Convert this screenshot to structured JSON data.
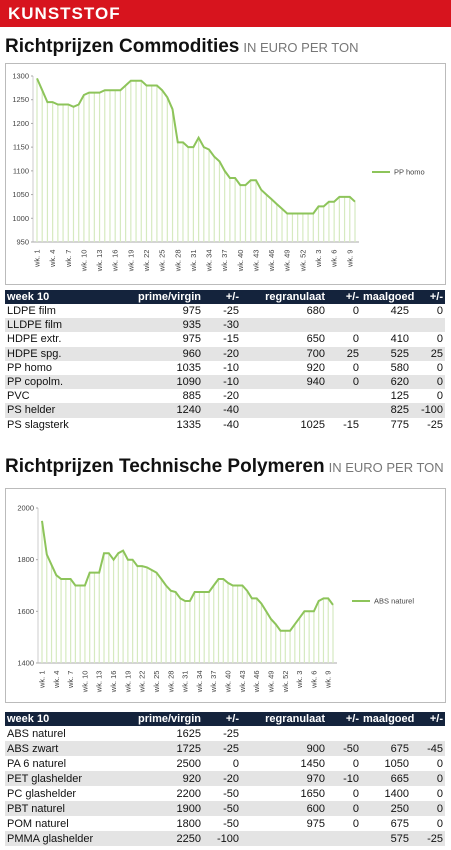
{
  "header": {
    "title": "KUNSTSTOF"
  },
  "chart_data": [
    {
      "type": "line",
      "title": "Richtprijzen Commodities",
      "subtitle": "IN EURO PER TON",
      "categories": [
        "wk. 1",
        null,
        null,
        "wk. 4",
        null,
        null,
        "wk. 7",
        null,
        null,
        "wk. 10",
        null,
        null,
        "wk. 13",
        null,
        null,
        "wk. 16",
        null,
        null,
        "wk. 19",
        null,
        null,
        "wk. 22",
        null,
        null,
        "wk. 25",
        null,
        null,
        "wk. 28",
        null,
        null,
        "wk. 31",
        null,
        null,
        "wk. 34",
        null,
        null,
        "wk. 37",
        null,
        null,
        "wk. 40",
        null,
        null,
        "wk. 43",
        null,
        null,
        "wk. 46",
        null,
        null,
        "wk. 49",
        null,
        null,
        "wk. 52",
        null,
        null,
        "wk. 3",
        null,
        null,
        "wk. 6",
        null,
        null,
        "wk. 9",
        null
      ],
      "series": [
        {
          "name": "PP homo",
          "color": "#8dc45a",
          "values": [
            1295,
            1270,
            1245,
            1245,
            1240,
            1240,
            1240,
            1235,
            1240,
            1260,
            1265,
            1265,
            1265,
            1270,
            1270,
            1270,
            1270,
            1280,
            1290,
            1290,
            1290,
            1280,
            1280,
            1280,
            1270,
            1255,
            1230,
            1160,
            1160,
            1150,
            1150,
            1170,
            1150,
            1145,
            1130,
            1120,
            1100,
            1085,
            1085,
            1070,
            1070,
            1080,
            1080,
            1060,
            1050,
            1040,
            1030,
            1020,
            1010,
            1010,
            1010,
            1010,
            1010,
            1010,
            1025,
            1025,
            1035,
            1035,
            1045,
            1045,
            1045,
            1035
          ]
        }
      ],
      "ylim": [
        950,
        1300
      ],
      "yticks": [
        950,
        1000,
        1050,
        1100,
        1150,
        1200,
        1250,
        1300
      ],
      "grid": false,
      "legend": "right"
    },
    {
      "type": "line",
      "title": "Richtprijzen Technische Polymeren",
      "subtitle": "IN EURO PER TON",
      "categories": [
        "wk. 1",
        null,
        null,
        "wk. 4",
        null,
        null,
        "wk. 7",
        null,
        null,
        "wk. 10",
        null,
        null,
        "wk. 13",
        null,
        null,
        "wk. 16",
        null,
        null,
        "wk. 19",
        null,
        null,
        "wk. 22",
        null,
        null,
        "wk. 25",
        null,
        null,
        "wk. 28",
        null,
        null,
        "wk. 31",
        null,
        null,
        "wk. 34",
        null,
        null,
        "wk. 37",
        null,
        null,
        "wk. 40",
        null,
        null,
        "wk. 43",
        null,
        null,
        "wk. 46",
        null,
        null,
        "wk. 49",
        null,
        null,
        "wk. 52",
        null,
        null,
        "wk. 3",
        null,
        null,
        "wk. 6",
        null,
        null,
        "wk. 9",
        null
      ],
      "series": [
        {
          "name": "ABS naturel",
          "color": "#8dc45a",
          "values": [
            1950,
            1820,
            1780,
            1740,
            1725,
            1725,
            1725,
            1700,
            1700,
            1700,
            1750,
            1750,
            1750,
            1825,
            1825,
            1800,
            1825,
            1835,
            1800,
            1800,
            1775,
            1775,
            1770,
            1760,
            1750,
            1725,
            1700,
            1680,
            1675,
            1650,
            1640,
            1640,
            1675,
            1675,
            1675,
            1675,
            1700,
            1725,
            1725,
            1710,
            1700,
            1700,
            1700,
            1680,
            1650,
            1650,
            1630,
            1600,
            1570,
            1550,
            1525,
            1525,
            1525,
            1550,
            1575,
            1600,
            1600,
            1600,
            1640,
            1650,
            1650,
            1625
          ]
        }
      ],
      "ylim": [
        1400,
        2000
      ],
      "yticks": [
        1400,
        1600,
        1800,
        2000
      ],
      "grid": false,
      "legend": "right"
    }
  ],
  "tables": [
    {
      "header": [
        "week 10",
        "prime/virgin",
        "+/-",
        "regranulaat",
        "+/-",
        "maalgoed",
        "+/-"
      ],
      "rows": [
        [
          "LDPE film",
          "975",
          "-25",
          "680",
          "0",
          "425",
          "0"
        ],
        [
          "LLDPE film",
          "935",
          "-30",
          null,
          null,
          null,
          null
        ],
        [
          "HDPE extr.",
          "975",
          "-15",
          "650",
          "0",
          "410",
          "0"
        ],
        [
          "HDPE spg.",
          "960",
          "-20",
          "700",
          "25",
          "525",
          "25"
        ],
        [
          "PP homo",
          "1035",
          "-10",
          "920",
          "0",
          "580",
          "0"
        ],
        [
          "PP copolm.",
          "1090",
          "-10",
          "940",
          "0",
          "620",
          "0"
        ],
        [
          "PVC",
          "885",
          "-20",
          null,
          null,
          "125",
          "0"
        ],
        [
          "PS helder",
          "1240",
          "-40",
          null,
          null,
          "825",
          "-100"
        ],
        [
          "PS slagsterk",
          "1335",
          "-40",
          "1025",
          "-15",
          "775",
          "-25"
        ]
      ]
    },
    {
      "header": [
        "week 10",
        "prime/virgin",
        "+/-",
        "regranulaat",
        "+/-",
        "maalgoed",
        "+/-"
      ],
      "rows": [
        [
          "ABS naturel",
          "1625",
          "-25",
          null,
          null,
          null,
          null
        ],
        [
          "ABS zwart",
          "1725",
          "-25",
          "900",
          "-50",
          "675",
          "-45"
        ],
        [
          "PA 6 naturel",
          "2500",
          "0",
          "1450",
          "0",
          "1050",
          "0"
        ],
        [
          "PET glashelder",
          "920",
          "-20",
          "970",
          "-10",
          "665",
          "0"
        ],
        [
          "PC glashelder",
          "2200",
          "-50",
          "1650",
          "0",
          "1400",
          "0"
        ],
        [
          "PBT naturel",
          "1900",
          "-50",
          "600",
          "0",
          "250",
          "0"
        ],
        [
          "POM naturel",
          "1800",
          "-50",
          "975",
          "0",
          "675",
          "0"
        ],
        [
          "PMMA glashelder",
          "2250",
          "-100",
          null,
          null,
          "575",
          "-25"
        ]
      ]
    }
  ]
}
